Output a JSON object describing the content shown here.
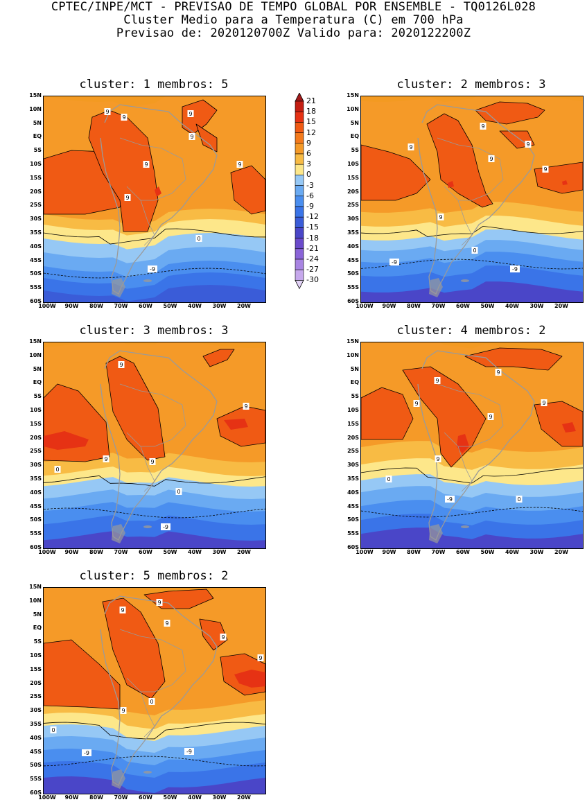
{
  "header": {
    "line1": "CPTEC/INPE/MCT - PREVISAO DE TEMPO GLOBAL POR ENSEMBLE - TQ0126L028",
    "line2": "Cluster Medio para a Temperatura (C) em 700 hPa",
    "line3": "Previsao de: 2020120700Z   Valido para: 2020122200Z"
  },
  "axes": {
    "lat_labels": [
      "15N",
      "10N",
      "5N",
      "EQ",
      "5S",
      "10S",
      "15S",
      "20S",
      "25S",
      "30S",
      "35S",
      "40S",
      "45S",
      "50S",
      "55S",
      "60S"
    ],
    "lon_labels": [
      "100W",
      "90W",
      "80W",
      "70W",
      "60W",
      "50W",
      "40W",
      "30W",
      "20W"
    ]
  },
  "colorbar": {
    "labels": [
      "21",
      "18",
      "15",
      "12",
      "9",
      "6",
      "3",
      "0",
      "-3",
      "-6",
      "-9",
      "-12",
      "-15",
      "-18",
      "-21",
      "-24",
      "-27",
      "-30"
    ],
    "colors": [
      "#a11a1a",
      "#c41e12",
      "#e63214",
      "#f05a14",
      "#f47a1c",
      "#f59a28",
      "#f8bb44",
      "#fde78a",
      "#96c8f5",
      "#6aaaf2",
      "#4a8eef",
      "#3a74e8",
      "#3a5cd8",
      "#4a46c8",
      "#6a4acb",
      "#8a64d8",
      "#a884e2",
      "#c6a8ec",
      "#e2d2f6"
    ]
  },
  "panels": [
    {
      "title": "cluster: 1   membros: 5",
      "labels": [
        {
          "text": "9"
        },
        {
          "text": "9"
        },
        {
          "text": "9"
        },
        {
          "text": "9"
        },
        {
          "text": "9"
        },
        {
          "text": "9"
        },
        {
          "text": "9"
        },
        {
          "text": "0"
        },
        {
          "text": "-9"
        }
      ]
    },
    {
      "title": "cluster: 2   membros: 3",
      "labels": [
        {
          "text": "9"
        },
        {
          "text": "9"
        },
        {
          "text": "9"
        },
        {
          "text": "9"
        },
        {
          "text": "9"
        },
        {
          "text": "9"
        },
        {
          "text": "0"
        },
        {
          "text": "-9"
        },
        {
          "text": "-9"
        }
      ]
    },
    {
      "title": "cluster: 3   membros: 3",
      "labels": [
        {
          "text": "9"
        },
        {
          "text": "9"
        },
        {
          "text": "9"
        },
        {
          "text": "9"
        },
        {
          "text": "0"
        },
        {
          "text": "0"
        },
        {
          "text": "-9"
        }
      ]
    },
    {
      "title": "cluster: 4   membros: 2",
      "labels": [
        {
          "text": "9"
        },
        {
          "text": "9"
        },
        {
          "text": "9"
        },
        {
          "text": "9"
        },
        {
          "text": "9"
        },
        {
          "text": "9"
        },
        {
          "text": "0"
        },
        {
          "text": "0"
        },
        {
          "text": "-9"
        }
      ]
    },
    {
      "title": "cluster: 5   membros: 2",
      "labels": [
        {
          "text": "9"
        },
        {
          "text": "9"
        },
        {
          "text": "9"
        },
        {
          "text": "9"
        },
        {
          "text": "9"
        },
        {
          "text": "9"
        },
        {
          "text": "0"
        },
        {
          "text": "0"
        },
        {
          "text": "-9"
        },
        {
          "text": "-9"
        }
      ]
    }
  ]
}
